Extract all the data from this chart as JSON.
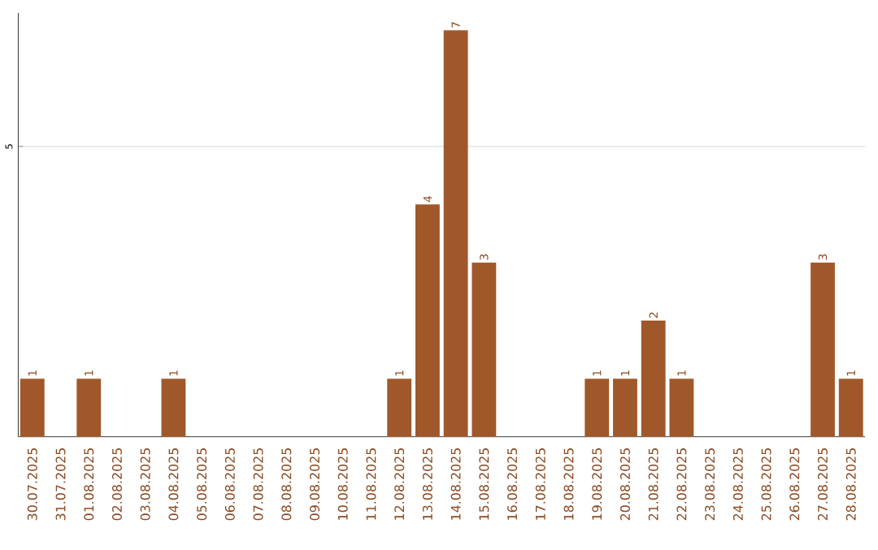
{
  "chart_data": {
    "type": "bar",
    "color": "#a0582a",
    "categories": [
      "30.07.2025",
      "31.07.2025",
      "01.08.2025",
      "02.08.2025",
      "03.08.2025",
      "04.08.2025",
      "05.08.2025",
      "06.08.2025",
      "07.08.2025",
      "08.08.2025",
      "09.08.2025",
      "10.08.2025",
      "11.08.2025",
      "12.08.2025",
      "13.08.2025",
      "14.08.2025",
      "15.08.2025",
      "16.08.2025",
      "17.08.2025",
      "18.08.2025",
      "19.08.2025",
      "20.08.2025",
      "21.08.2025",
      "22.08.2025",
      "23.08.2025",
      "24.08.2025",
      "25.08.2025",
      "26.08.2025",
      "27.08.2025",
      "28.08.2025"
    ],
    "values": [
      1,
      0,
      1,
      0,
      0,
      1,
      0,
      0,
      0,
      0,
      0,
      0,
      0,
      1,
      4,
      7,
      3,
      0,
      0,
      0,
      1,
      1,
      2,
      1,
      0,
      0,
      0,
      0,
      3,
      1
    ],
    "value_labels": [
      "1",
      null,
      "1",
      null,
      null,
      "1",
      null,
      null,
      null,
      null,
      null,
      null,
      null,
      "1",
      "4",
      "7",
      "3",
      null,
      null,
      null,
      "1",
      "1",
      "2",
      "1",
      null,
      null,
      null,
      null,
      "3",
      "1"
    ],
    "ylim": [
      0,
      7.3
    ],
    "yticks": [
      5
    ],
    "grid": "y"
  }
}
